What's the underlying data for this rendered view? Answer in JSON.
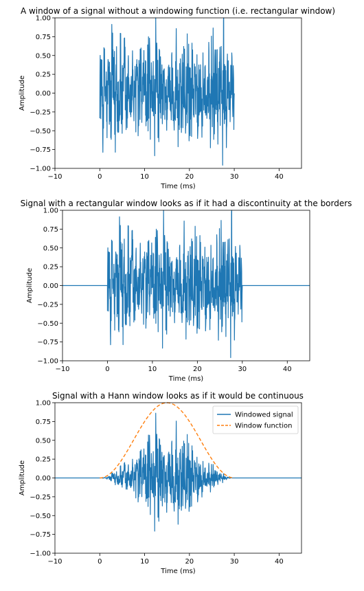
{
  "colors": {
    "signal": "#1f77b4",
    "window": "#ff7f0e",
    "axes": "#000000",
    "legend_border": "#cccccc"
  },
  "chart_data": [
    {
      "type": "line",
      "title": "A window of a signal without a windowing function (i.e. rectangular window)",
      "xlabel": "Time (ms)",
      "ylabel": "Amplitude",
      "xlim": [
        -10,
        45
      ],
      "ylim": [
        -1.0,
        1.0
      ],
      "xticks": [
        -10,
        0,
        10,
        20,
        30,
        40
      ],
      "yticks": [
        -1.0,
        -0.75,
        -0.5,
        -0.25,
        0.0,
        0.25,
        0.5,
        0.75,
        1.0
      ],
      "xtick_labels": [
        "−10",
        "0",
        "10",
        "20",
        "30",
        "40"
      ],
      "ytick_labels": [
        "−1.00",
        "−0.75",
        "−0.50",
        "−0.25",
        "0.00",
        "0.25",
        "0.50",
        "0.75",
        "1.00"
      ],
      "grid": false,
      "series": [
        {
          "signal_range_ms": [
            0,
            30
          ],
          "window": "rectangular",
          "extends_to_axis_edges": false,
          "peak_amplitude": 1.0
        }
      ]
    },
    {
      "type": "line",
      "title": "Signal with a rectangular window looks as if it had a discontinuity at the borders",
      "xlabel": "Time (ms)",
      "ylabel": "Amplitude",
      "xlim": [
        -10,
        45
      ],
      "ylim": [
        -1.0,
        1.0
      ],
      "xticks": [
        -10,
        0,
        10,
        20,
        30,
        40
      ],
      "yticks": [
        -1.0,
        -0.75,
        -0.5,
        -0.25,
        0.0,
        0.25,
        0.5,
        0.75,
        1.0
      ],
      "xtick_labels": [
        "−10",
        "0",
        "10",
        "20",
        "30",
        "40"
      ],
      "ytick_labels": [
        "−1.00",
        "−0.75",
        "−0.50",
        "−0.25",
        "0.00",
        "0.25",
        "0.50",
        "0.75",
        "1.00"
      ],
      "grid": false,
      "series": [
        {
          "signal_range_ms": [
            0,
            30
          ],
          "window": "rectangular",
          "extends_to_axis_edges": true,
          "peak_amplitude": 1.0
        }
      ]
    },
    {
      "type": "line",
      "title": "Signal with a Hann window looks as if it would be continuous",
      "xlabel": "Time (ms)",
      "ylabel": "Amplitude",
      "xlim": [
        -10,
        45
      ],
      "ylim": [
        -1.0,
        1.0
      ],
      "xticks": [
        -10,
        0,
        10,
        20,
        30,
        40
      ],
      "yticks": [
        -1.0,
        -0.75,
        -0.5,
        -0.25,
        0.0,
        0.25,
        0.5,
        0.75,
        1.0
      ],
      "xtick_labels": [
        "−10",
        "0",
        "10",
        "20",
        "30",
        "40"
      ],
      "ytick_labels": [
        "−1.00",
        "−0.75",
        "−0.50",
        "−0.25",
        "0.00",
        "0.25",
        "0.50",
        "0.75",
        "1.00"
      ],
      "grid": false,
      "legend": "top-right",
      "series": [
        {
          "name": "Windowed signal",
          "signal_range_ms": [
            0,
            30
          ],
          "window": "hann",
          "extends_to_axis_edges": true,
          "peak_amplitude": 0.88
        },
        {
          "name": "Window function",
          "kind": "hann",
          "range_ms": [
            0,
            30
          ],
          "peak": 1.0,
          "peak_at_ms": 15
        }
      ]
    }
  ]
}
